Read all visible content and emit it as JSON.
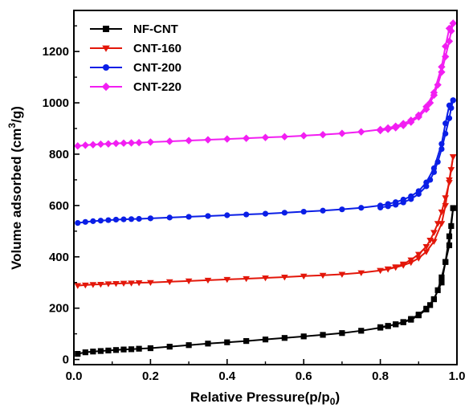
{
  "chart_data": {
    "type": "line",
    "xlabel": "Relative Pressure(p/p",
    "xlabel_sub": "0",
    "xlabel_close": ")",
    "ylabel": "Volume adsorbed (cm",
    "ylabel_sup": "3",
    "ylabel_close": "/g)",
    "xlim": [
      0.0,
      1.0
    ],
    "ylim": [
      -20,
      1360
    ],
    "xticks": [
      "0.0",
      "0.2",
      "0.4",
      "0.6",
      "0.8",
      "1.0"
    ],
    "yticks": [
      "0",
      "200",
      "400",
      "600",
      "800",
      "1000",
      "1200"
    ],
    "legend_position": "top-left",
    "grid": false,
    "series": [
      {
        "name": "NF-CNT",
        "color": "#000000",
        "marker": "square",
        "adsorption": {
          "x": [
            0.01,
            0.03,
            0.05,
            0.07,
            0.09,
            0.11,
            0.13,
            0.15,
            0.17,
            0.2,
            0.25,
            0.3,
            0.35,
            0.4,
            0.45,
            0.5,
            0.55,
            0.6,
            0.65,
            0.7,
            0.75,
            0.8,
            0.82,
            0.84,
            0.86,
            0.88,
            0.9,
            0.92,
            0.94,
            0.96,
            0.97,
            0.98,
            0.99
          ],
          "y": [
            22,
            28,
            31,
            33,
            35,
            37,
            39,
            40,
            42,
            44,
            50,
            56,
            62,
            67,
            72,
            78,
            84,
            90,
            96,
            103,
            112,
            124,
            130,
            137,
            146,
            158,
            175,
            198,
            235,
            300,
            380,
            480,
            590
          ]
        },
        "desorption": {
          "x": [
            0.99,
            0.985,
            0.98,
            0.97,
            0.96,
            0.95,
            0.94,
            0.93,
            0.92,
            0.9,
            0.88,
            0.86,
            0.84,
            0.82,
            0.8
          ],
          "y": [
            590,
            520,
            445,
            380,
            320,
            270,
            235,
            212,
            195,
            172,
            155,
            145,
            137,
            131,
            126
          ]
        }
      },
      {
        "name": "CNT-160",
        "color": "#e3170a",
        "marker": "triangle-down",
        "adsorption": {
          "x": [
            0.01,
            0.03,
            0.05,
            0.07,
            0.09,
            0.11,
            0.13,
            0.15,
            0.17,
            0.2,
            0.25,
            0.3,
            0.35,
            0.4,
            0.45,
            0.5,
            0.55,
            0.6,
            0.65,
            0.7,
            0.75,
            0.8,
            0.82,
            0.84,
            0.86,
            0.88,
            0.9,
            0.92,
            0.94,
            0.96,
            0.97,
            0.98,
            0.99
          ],
          "y": [
            288,
            290,
            292,
            293,
            295,
            296,
            297,
            298,
            299,
            300,
            303,
            306,
            309,
            312,
            315,
            318,
            321,
            325,
            328,
            332,
            338,
            347,
            352,
            359,
            367,
            378,
            395,
            420,
            460,
            530,
            600,
            700,
            790
          ]
        },
        "desorption": {
          "x": [
            0.99,
            0.985,
            0.98,
            0.97,
            0.96,
            0.95,
            0.94,
            0.93,
            0.92,
            0.9,
            0.88,
            0.86,
            0.84,
            0.82,
            0.8
          ],
          "y": [
            790,
            740,
            690,
            630,
            575,
            530,
            495,
            465,
            440,
            410,
            388,
            372,
            361,
            353,
            347
          ]
        }
      },
      {
        "name": "CNT-200",
        "color": "#0a1ee6",
        "marker": "circle",
        "adsorption": {
          "x": [
            0.01,
            0.03,
            0.05,
            0.07,
            0.09,
            0.11,
            0.13,
            0.15,
            0.17,
            0.2,
            0.25,
            0.3,
            0.35,
            0.4,
            0.45,
            0.5,
            0.55,
            0.6,
            0.65,
            0.7,
            0.75,
            0.8,
            0.82,
            0.84,
            0.86,
            0.88,
            0.9,
            0.92,
            0.94,
            0.96,
            0.97,
            0.98,
            0.99
          ],
          "y": [
            532,
            536,
            539,
            541,
            543,
            545,
            546,
            547,
            548,
            550,
            553,
            556,
            559,
            562,
            565,
            568,
            572,
            576,
            580,
            585,
            591,
            600,
            606,
            613,
            623,
            636,
            656,
            690,
            745,
            840,
            920,
            990,
            1010
          ]
        },
        "desorption": {
          "x": [
            0.99,
            0.985,
            0.98,
            0.97,
            0.96,
            0.95,
            0.94,
            0.93,
            0.92,
            0.9,
            0.88,
            0.86,
            0.84,
            0.82,
            0.8
          ],
          "y": [
            1010,
            980,
            940,
            880,
            820,
            770,
            730,
            700,
            675,
            645,
            625,
            612,
            603,
            597,
            592
          ]
        }
      },
      {
        "name": "CNT-220",
        "color": "#f21ef2",
        "marker": "diamond",
        "adsorption": {
          "x": [
            0.01,
            0.03,
            0.05,
            0.07,
            0.09,
            0.11,
            0.13,
            0.15,
            0.17,
            0.2,
            0.25,
            0.3,
            0.35,
            0.4,
            0.45,
            0.5,
            0.55,
            0.6,
            0.65,
            0.7,
            0.75,
            0.8,
            0.82,
            0.84,
            0.86,
            0.88,
            0.9,
            0.92,
            0.94,
            0.96,
            0.97,
            0.98,
            0.99
          ],
          "y": [
            832,
            835,
            837,
            839,
            840,
            842,
            843,
            844,
            845,
            847,
            850,
            853,
            856,
            859,
            862,
            865,
            868,
            872,
            876,
            881,
            887,
            896,
            902,
            909,
            919,
            932,
            952,
            985,
            1040,
            1140,
            1220,
            1290,
            1310
          ]
        },
        "desorption": {
          "x": [
            0.99,
            0.985,
            0.98,
            0.97,
            0.96,
            0.95,
            0.94,
            0.93,
            0.92,
            0.9,
            0.88,
            0.86,
            0.84,
            0.82,
            0.8
          ],
          "y": [
            1310,
            1280,
            1240,
            1180,
            1120,
            1070,
            1030,
            1000,
            975,
            945,
            925,
            912,
            903,
            897,
            892
          ]
        }
      }
    ]
  }
}
